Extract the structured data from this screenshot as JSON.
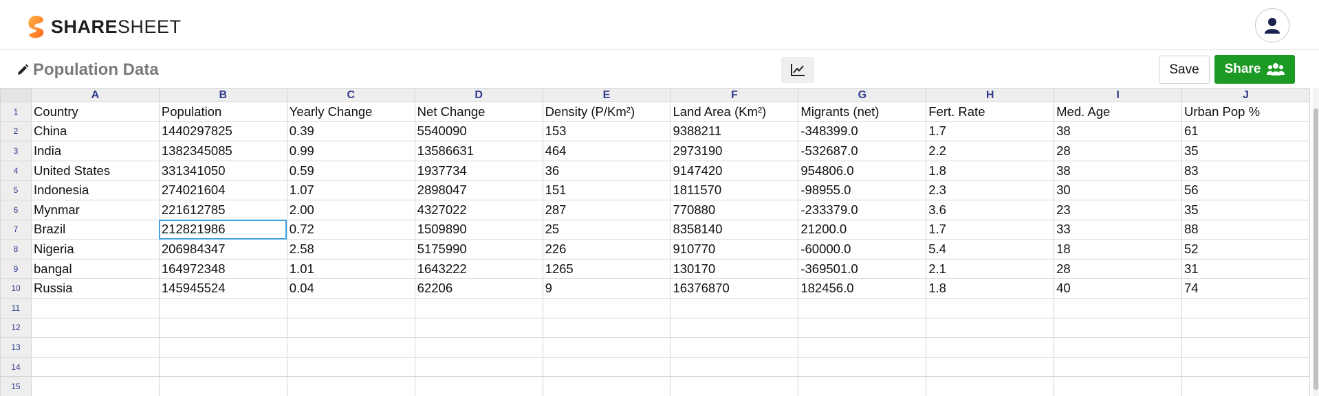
{
  "header": {
    "logo_bold": "SHARE",
    "logo_light": "SHEET",
    "logo_icon": "sharesheet-logo-icon",
    "avatar_icon": "user-icon"
  },
  "toolbar": {
    "document_title": "Population Data",
    "edit_icon": "pencil-icon",
    "chart_icon": "line-chart-icon",
    "save_label": "Save",
    "share_label": "Share",
    "share_icon": "users-icon",
    "share_color": "#1d9a24"
  },
  "sheet": {
    "columns": [
      "A",
      "B",
      "C",
      "D",
      "E",
      "F",
      "G",
      "H",
      "I",
      "J"
    ],
    "rows": [
      {
        "num": "1",
        "cells": [
          "Country",
          "Population",
          "Yearly Change",
          "Net Change",
          "Density (P/Km²)",
          "Land Area (Km²)",
          "Migrants (net)",
          "Fert. Rate",
          "Med. Age",
          "Urban Pop %"
        ]
      },
      {
        "num": "2",
        "cells": [
          "China",
          "1440297825",
          "0.39",
          "5540090",
          "153",
          "9388211",
          "-348399.0",
          "1.7",
          "38",
          "61"
        ]
      },
      {
        "num": "3",
        "cells": [
          "India",
          "1382345085",
          "0.99",
          "13586631",
          "464",
          "2973190",
          "-532687.0",
          "2.2",
          "28",
          "35"
        ]
      },
      {
        "num": "4",
        "cells": [
          "United States",
          "331341050",
          "0.59",
          "1937734",
          "36",
          "9147420",
          "954806.0",
          "1.8",
          "38",
          "83"
        ]
      },
      {
        "num": "5",
        "cells": [
          "Indonesia",
          "274021604",
          "1.07",
          "2898047",
          "151",
          "1811570",
          "-98955.0",
          "2.3",
          "30",
          "56"
        ]
      },
      {
        "num": "6",
        "cells": [
          "Mynmar",
          "221612785",
          "2.00",
          "4327022",
          "287",
          "770880",
          "-233379.0",
          "3.6",
          "23",
          "35"
        ]
      },
      {
        "num": "7",
        "cells": [
          "Brazil",
          "212821986",
          "0.72",
          "1509890",
          "25",
          "8358140",
          "21200.0",
          "1.7",
          "33",
          "88"
        ]
      },
      {
        "num": "8",
        "cells": [
          "Nigeria",
          "206984347",
          "2.58",
          "5175990",
          "226",
          "910770",
          "-60000.0",
          "5.4",
          "18",
          "52"
        ]
      },
      {
        "num": "9",
        "cells": [
          "bangal",
          "164972348",
          "1.01",
          "1643222",
          "1265",
          "130170",
          "-369501.0",
          "2.1",
          "28",
          "31"
        ]
      },
      {
        "num": "10",
        "cells": [
          "Russia",
          "145945524",
          "0.04",
          "62206",
          "9",
          "16376870",
          "182456.0",
          "1.8",
          "40",
          "74"
        ]
      },
      {
        "num": "11",
        "cells": [
          "",
          "",
          "",
          "",
          "",
          "",
          "",
          "",
          "",
          ""
        ]
      },
      {
        "num": "12",
        "cells": [
          "",
          "",
          "",
          "",
          "",
          "",
          "",
          "",
          "",
          ""
        ]
      },
      {
        "num": "13",
        "cells": [
          "",
          "",
          "",
          "",
          "",
          "",
          "",
          "",
          "",
          ""
        ]
      },
      {
        "num": "14",
        "cells": [
          "",
          "",
          "",
          "",
          "",
          "",
          "",
          "",
          "",
          ""
        ]
      },
      {
        "num": "15",
        "cells": [
          "",
          "",
          "",
          "",
          "",
          "",
          "",
          "",
          "",
          ""
        ]
      }
    ],
    "selected_cell": "B7"
  }
}
